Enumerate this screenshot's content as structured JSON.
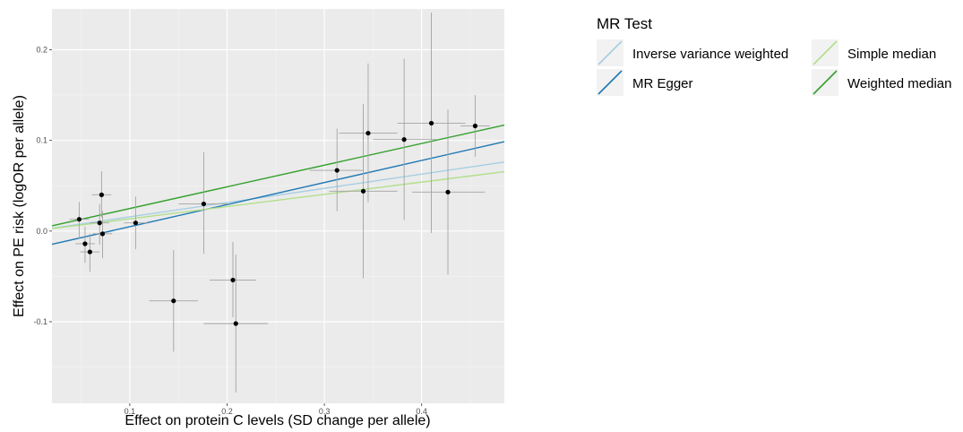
{
  "chart_data": {
    "type": "scatter",
    "xlabel": "Effect on protein C levels (SD change per allele)",
    "ylabel": "Effect on PE risk (logOR per allele)",
    "xlim": [
      0.02,
      0.485
    ],
    "ylim": [
      -0.19,
      0.245
    ],
    "x_ticks": [
      0.1,
      0.2,
      0.3,
      0.4
    ],
    "y_ticks": [
      -0.1,
      0.0,
      0.1,
      0.2
    ],
    "x_tick_labels": [
      "0.1",
      "0.2",
      "0.3",
      "0.4"
    ],
    "y_tick_labels": [
      "-0.1",
      "0.0",
      "0.1",
      "0.2"
    ],
    "grid": true,
    "legend_position": "right",
    "legend": {
      "title": "MR Test",
      "entries": [
        {
          "label": "Inverse variance weighted",
          "color": "#a6cee3"
        },
        {
          "label": "MR Egger",
          "color": "#1f78b4"
        },
        {
          "label": "Simple median",
          "color": "#b2df8a"
        },
        {
          "label": "Weighted median",
          "color": "#33a02c"
        }
      ]
    },
    "points": [
      {
        "x": 0.048,
        "y": 0.013,
        "xmin": 0.038,
        "xmax": 0.058,
        "ymin": -0.008,
        "ymax": 0.032
      },
      {
        "x": 0.054,
        "y": -0.014,
        "xmin": 0.044,
        "xmax": 0.064,
        "ymin": -0.035,
        "ymax": 0.005
      },
      {
        "x": 0.059,
        "y": -0.023,
        "xmin": 0.049,
        "xmax": 0.069,
        "ymin": -0.045,
        "ymax": -0.003
      },
      {
        "x": 0.069,
        "y": 0.009,
        "xmin": 0.059,
        "xmax": 0.079,
        "ymin": -0.015,
        "ymax": 0.03
      },
      {
        "x": 0.071,
        "y": 0.04,
        "xmin": 0.061,
        "xmax": 0.081,
        "ymin": 0.015,
        "ymax": 0.066
      },
      {
        "x": 0.072,
        "y": -0.003,
        "xmin": 0.062,
        "xmax": 0.082,
        "ymin": -0.03,
        "ymax": 0.022
      },
      {
        "x": 0.106,
        "y": 0.009,
        "xmin": 0.094,
        "xmax": 0.118,
        "ymin": -0.02,
        "ymax": 0.038
      },
      {
        "x": 0.145,
        "y": -0.077,
        "xmin": 0.12,
        "xmax": 0.17,
        "ymin": -0.133,
        "ymax": -0.021
      },
      {
        "x": 0.176,
        "y": 0.03,
        "xmin": 0.15,
        "xmax": 0.202,
        "ymin": -0.025,
        "ymax": 0.087
      },
      {
        "x": 0.206,
        "y": -0.054,
        "xmin": 0.182,
        "xmax": 0.23,
        "ymin": -0.095,
        "ymax": -0.012
      },
      {
        "x": 0.209,
        "y": -0.102,
        "xmin": 0.176,
        "xmax": 0.242,
        "ymin": -0.178,
        "ymax": -0.026
      },
      {
        "x": 0.313,
        "y": 0.067,
        "xmin": 0.285,
        "xmax": 0.34,
        "ymin": 0.022,
        "ymax": 0.113
      },
      {
        "x": 0.34,
        "y": 0.044,
        "xmin": 0.305,
        "xmax": 0.375,
        "ymin": -0.052,
        "ymax": 0.14
      },
      {
        "x": 0.345,
        "y": 0.108,
        "xmin": 0.315,
        "xmax": 0.375,
        "ymin": 0.032,
        "ymax": 0.185
      },
      {
        "x": 0.382,
        "y": 0.101,
        "xmin": 0.35,
        "xmax": 0.415,
        "ymin": 0.012,
        "ymax": 0.19
      },
      {
        "x": 0.41,
        "y": 0.119,
        "xmin": 0.375,
        "xmax": 0.445,
        "ymin": -0.002,
        "ymax": 0.241
      },
      {
        "x": 0.427,
        "y": 0.043,
        "xmin": 0.39,
        "xmax": 0.465,
        "ymin": -0.048,
        "ymax": 0.134
      },
      {
        "x": 0.455,
        "y": 0.116,
        "xmin": 0.44,
        "xmax": 0.47,
        "ymin": 0.082,
        "ymax": 0.15
      }
    ],
    "lines": [
      {
        "name": "Inverse variance weighted",
        "color": "#a6cee3",
        "intercept": 0.0,
        "slope": 0.157
      },
      {
        "name": "MR Egger",
        "color": "#1f78b4",
        "intercept": -0.0195,
        "slope": 0.2435
      },
      {
        "name": "Simple median",
        "color": "#b2df8a",
        "intercept": 0.0,
        "slope": 0.135
      },
      {
        "name": "Weighted median",
        "color": "#33a02c",
        "intercept": 0.001,
        "slope": 0.239
      }
    ]
  }
}
